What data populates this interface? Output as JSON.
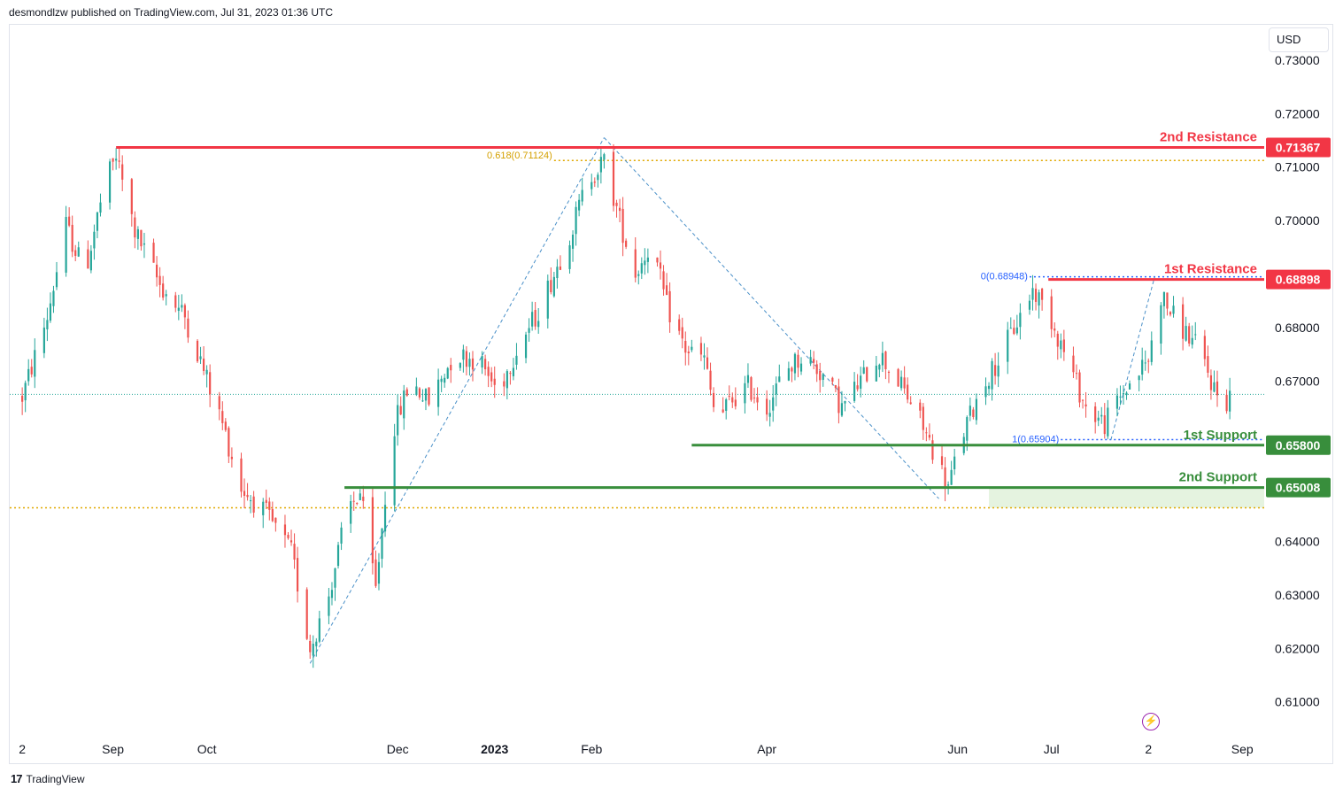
{
  "header": {
    "published": "desmondlzw published on TradingView.com, Jul 31, 2023 01:36 UTC"
  },
  "currency": "USD",
  "footer": {
    "brand": "TradingView",
    "logo_icon": "tradingview-logo-icon"
  },
  "icons": {
    "bolt": "lightning-bolt-icon"
  },
  "colors": {
    "up": "#26a69a",
    "down": "#ef5350",
    "resistance": "#f23645",
    "support": "#388e3c",
    "fib": "#2962ff",
    "gold": "#e0a800"
  },
  "chart_data": {
    "type": "candlestick",
    "y_ticks": [
      0.61,
      0.62,
      0.63,
      0.64,
      0.65,
      0.66,
      0.67,
      0.68,
      0.69,
      0.7,
      0.71,
      0.72,
      0.73
    ],
    "y_tick_labels": [
      "0.61000",
      "0.62000",
      "0.63000",
      "0.64000",
      "0.65000",
      "0.66000",
      "0.67000",
      "0.68000",
      "0.69000",
      "0.70000",
      "0.71000",
      "0.72000",
      "0.73000"
    ],
    "ylim": [
      0.6035,
      0.7366
    ],
    "x_labels": [
      {
        "t": 0,
        "label": "2"
      },
      {
        "t": 29,
        "label": "Sep"
      },
      {
        "t": 59,
        "label": "Oct"
      },
      {
        "t": 120,
        "label": "Dec"
      },
      {
        "t": 151,
        "label": "2023"
      },
      {
        "t": 182,
        "label": "Feb"
      },
      {
        "t": 238,
        "label": "Apr"
      },
      {
        "t": 299,
        "label": "Jun"
      },
      {
        "t": 329,
        "label": "Jul"
      },
      {
        "t": 360,
        "label": "2"
      },
      {
        "t": 390,
        "label": "Sep"
      }
    ],
    "levels": [
      {
        "name": "2nd Resistance",
        "value": 0.71367,
        "label": "0.71367",
        "kind": "resistance",
        "t_start": 30
      },
      {
        "name": "1st Resistance",
        "value": 0.68898,
        "label": "0.68898",
        "kind": "resistance",
        "t_start": 328
      },
      {
        "name": "1st Support",
        "value": 0.658,
        "label": "0.65800",
        "kind": "support",
        "t_start": 214
      },
      {
        "name": "2nd Support",
        "value": 0.65008,
        "label": "0.65008",
        "kind": "support",
        "t_start": 103
      }
    ],
    "fib_labels": [
      {
        "text": "0.618(0.71124)",
        "value": 0.71124
      },
      {
        "text": "0(0.68948)",
        "value": 0.68948
      },
      {
        "text": "1(0.65904)",
        "value": 0.65904
      }
    ],
    "gold_level_low": 0.6463,
    "last_price": 0.6675,
    "zone": {
      "t_start": 309,
      "low": 0.6463,
      "high": 0.65
    },
    "fib_trend_lines": [
      [
        {
          "t": 92,
          "v": 0.6172
        },
        {
          "t": 186,
          "v": 0.7155
        }
      ],
      [
        {
          "t": 186,
          "v": 0.7155
        },
        {
          "t": 293,
          "v": 0.648
        }
      ],
      [
        {
          "t": 348,
          "v": 0.659
        },
        {
          "t": 362,
          "v": 0.6895
        }
      ]
    ],
    "key_points": [
      {
        "t": 0,
        "v": 0.667
      },
      {
        "t": 8,
        "v": 0.682
      },
      {
        "t": 14,
        "v": 0.699
      },
      {
        "t": 20,
        "v": 0.69
      },
      {
        "t": 26,
        "v": 0.706
      },
      {
        "t": 30,
        "v": 0.712
      },
      {
        "t": 36,
        "v": 0.698
      },
      {
        "t": 44,
        "v": 0.688
      },
      {
        "t": 52,
        "v": 0.682
      },
      {
        "t": 58,
        "v": 0.672
      },
      {
        "t": 64,
        "v": 0.662
      },
      {
        "t": 70,
        "v": 0.65
      },
      {
        "t": 78,
        "v": 0.645
      },
      {
        "t": 86,
        "v": 0.638
      },
      {
        "t": 92,
        "v": 0.62
      },
      {
        "t": 98,
        "v": 0.63
      },
      {
        "t": 104,
        "v": 0.646
      },
      {
        "t": 108,
        "v": 0.649
      },
      {
        "t": 113,
        "v": 0.631
      },
      {
        "t": 118,
        "v": 0.66
      },
      {
        "t": 124,
        "v": 0.67
      },
      {
        "t": 130,
        "v": 0.666
      },
      {
        "t": 138,
        "v": 0.675
      },
      {
        "t": 146,
        "v": 0.674
      },
      {
        "t": 152,
        "v": 0.668
      },
      {
        "t": 158,
        "v": 0.676
      },
      {
        "t": 164,
        "v": 0.682
      },
      {
        "t": 170,
        "v": 0.69
      },
      {
        "t": 176,
        "v": 0.699
      },
      {
        "t": 181,
        "v": 0.708
      },
      {
        "t": 186,
        "v": 0.711
      },
      {
        "t": 191,
        "v": 0.7
      },
      {
        "t": 196,
        "v": 0.69
      },
      {
        "t": 201,
        "v": 0.696
      },
      {
        "t": 206,
        "v": 0.684
      },
      {
        "t": 212,
        "v": 0.676
      },
      {
        "t": 218,
        "v": 0.674
      },
      {
        "t": 222,
        "v": 0.662
      },
      {
        "t": 226,
        "v": 0.666
      },
      {
        "t": 232,
        "v": 0.669
      },
      {
        "t": 238,
        "v": 0.665
      },
      {
        "t": 244,
        "v": 0.672
      },
      {
        "t": 250,
        "v": 0.675
      },
      {
        "t": 256,
        "v": 0.671
      },
      {
        "t": 262,
        "v": 0.665
      },
      {
        "t": 268,
        "v": 0.67
      },
      {
        "t": 274,
        "v": 0.675
      },
      {
        "t": 280,
        "v": 0.67
      },
      {
        "t": 286,
        "v": 0.664
      },
      {
        "t": 292,
        "v": 0.656
      },
      {
        "t": 296,
        "v": 0.65
      },
      {
        "t": 300,
        "v": 0.659
      },
      {
        "t": 306,
        "v": 0.668
      },
      {
        "t": 312,
        "v": 0.674
      },
      {
        "t": 318,
        "v": 0.681
      },
      {
        "t": 323,
        "v": 0.687
      },
      {
        "t": 328,
        "v": 0.683
      },
      {
        "t": 334,
        "v": 0.674
      },
      {
        "t": 340,
        "v": 0.665
      },
      {
        "t": 346,
        "v": 0.662
      },
      {
        "t": 352,
        "v": 0.668
      },
      {
        "t": 356,
        "v": 0.671
      },
      {
        "t": 360,
        "v": 0.674
      },
      {
        "t": 364,
        "v": 0.686
      },
      {
        "t": 368,
        "v": 0.682
      },
      {
        "t": 372,
        "v": 0.679
      },
      {
        "t": 376,
        "v": 0.676
      },
      {
        "t": 380,
        "v": 0.67
      },
      {
        "t": 384,
        "v": 0.665
      },
      {
        "t": 386,
        "v": 0.6675
      }
    ]
  }
}
